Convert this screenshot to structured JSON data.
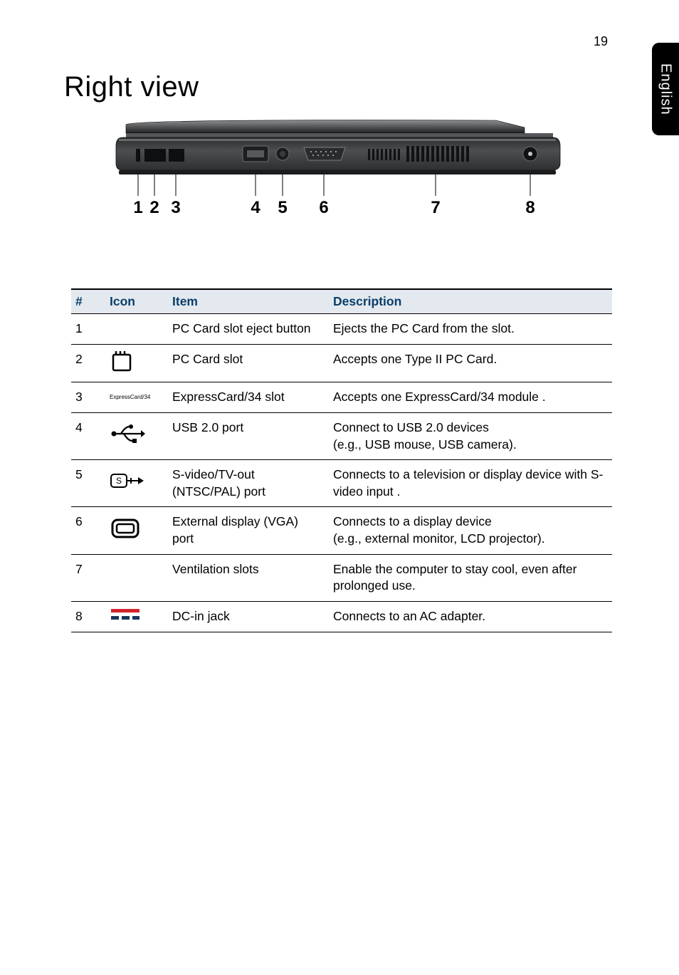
{
  "page_number": "19",
  "side_tab": "English",
  "title": "Right view",
  "diagram": {
    "callout_labels": [
      "1",
      "2",
      "3",
      "4",
      "5",
      "6",
      "7",
      "8"
    ],
    "body_fill": "#404244",
    "body_top": "#1a1b1d",
    "highlight": "#c9cacb",
    "callout_line": "#555555",
    "label_color": "#000000"
  },
  "table": {
    "headers": {
      "num": "#",
      "icon": "Icon",
      "item": "Item",
      "desc": "Description"
    },
    "header_bg": "#e3e9ef",
    "header_color": "#0a3e6a",
    "rows": [
      {
        "num": "1",
        "icon_type": "none",
        "item": "PC Card slot eject button",
        "desc": "Ejects the PC Card from the slot."
      },
      {
        "num": "2",
        "icon_type": "pccard",
        "item": "PC Card slot",
        "desc": "Accepts one Type II PC Card."
      },
      {
        "num": "3",
        "icon_type": "expresscard",
        "icon_label": "ExpressCard/34",
        "item": "ExpressCard/34 slot",
        "desc": "Accepts one ExpressCard/34 module ."
      },
      {
        "num": "4",
        "icon_type": "usb",
        "item": "USB 2.0 port",
        "desc": "Connect to USB 2.0 devices \n(e.g., USB mouse, USB camera)."
      },
      {
        "num": "5",
        "icon_type": "svideo",
        "item": "S-video/TV-out (NTSC/PAL) port",
        "desc": "Connects to a television or display device with S-video input ."
      },
      {
        "num": "6",
        "icon_type": "vga",
        "item": "External display (VGA) port",
        "desc": "Connects to a display device \n(e.g., external monitor, LCD projector)."
      },
      {
        "num": "7",
        "icon_type": "none",
        "item": "Ventilation slots",
        "desc": "Enable the computer to stay cool, even after prolonged use."
      },
      {
        "num": "8",
        "icon_type": "dcin",
        "item": "DC-in jack",
        "desc": "Connects to an AC adapter."
      }
    ]
  }
}
